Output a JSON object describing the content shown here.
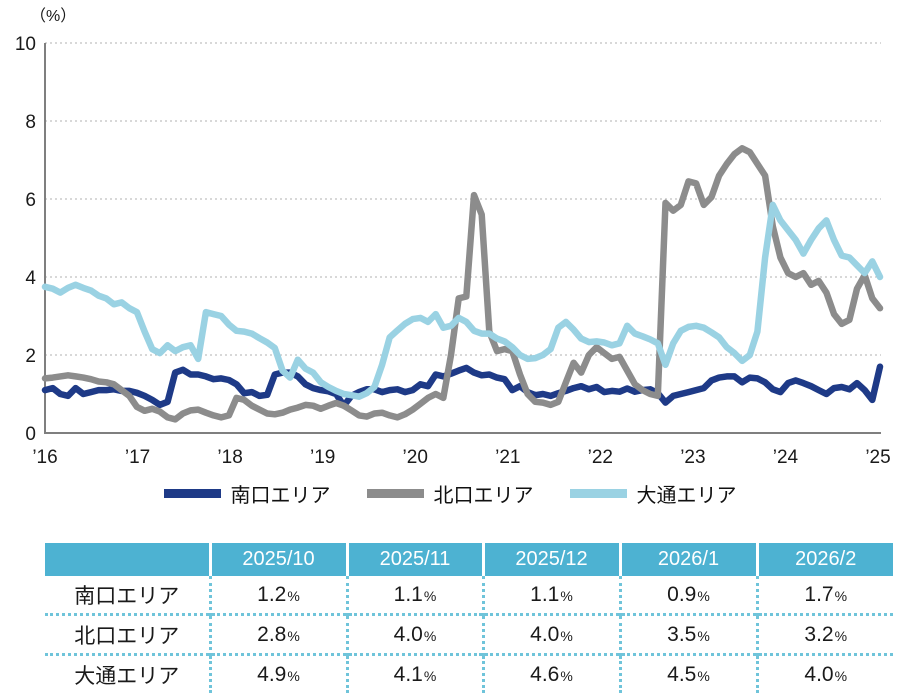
{
  "chart_data": {
    "type": "line",
    "unit_label": "（%）",
    "ylim": [
      0,
      10
    ],
    "yticks": [
      0,
      2,
      4,
      6,
      8,
      10
    ],
    "x_tick_labels": [
      "’16",
      "’17",
      "’18",
      "’19",
      "’20",
      "’21",
      "’22",
      "’23",
      "’24",
      "’25"
    ],
    "grid": "horizontal-dashed",
    "legend_position": "bottom",
    "series": [
      {
        "name": "南口エリア",
        "color": "#1e3a87",
        "values": [
          1.1,
          1.15,
          1.0,
          0.95,
          1.15,
          1.0,
          1.05,
          1.1,
          1.1,
          1.12,
          1.08,
          1.08,
          1.03,
          0.95,
          0.85,
          0.72,
          0.8,
          1.55,
          1.62,
          1.5,
          1.5,
          1.45,
          1.38,
          1.4,
          1.36,
          1.25,
          1.02,
          1.05,
          0.95,
          0.98,
          1.5,
          1.55,
          1.55,
          1.45,
          1.25,
          1.15,
          1.1,
          1.07,
          1.0,
          0.7,
          0.95,
          1.05,
          1.12,
          1.12,
          1.05,
          1.1,
          1.12,
          1.05,
          1.1,
          1.25,
          1.2,
          1.5,
          1.45,
          1.52,
          1.6,
          1.67,
          1.55,
          1.48,
          1.5,
          1.42,
          1.38,
          1.1,
          1.2,
          1.05,
          0.97,
          1.0,
          0.95,
          1.02,
          1.08,
          1.15,
          1.2,
          1.12,
          1.18,
          1.05,
          1.08,
          1.06,
          1.14,
          1.06,
          1.1,
          1.12,
          1.02,
          0.78,
          0.95,
          1.0,
          1.05,
          1.1,
          1.15,
          1.35,
          1.42,
          1.45,
          1.45,
          1.3,
          1.42,
          1.4,
          1.3,
          1.12,
          1.05,
          1.28,
          1.35,
          1.28,
          1.2,
          1.1,
          1.0,
          1.15,
          1.18,
          1.12,
          1.28,
          1.1,
          0.85,
          1.7
        ]
      },
      {
        "name": "北口エリア",
        "color": "#8c8c8c",
        "values": [
          1.4,
          1.42,
          1.45,
          1.48,
          1.45,
          1.42,
          1.38,
          1.32,
          1.3,
          1.25,
          1.1,
          0.95,
          0.67,
          0.57,
          0.62,
          0.55,
          0.4,
          0.35,
          0.5,
          0.58,
          0.6,
          0.52,
          0.45,
          0.4,
          0.45,
          0.9,
          0.85,
          0.7,
          0.6,
          0.5,
          0.48,
          0.52,
          0.6,
          0.65,
          0.72,
          0.7,
          0.62,
          0.7,
          0.77,
          0.7,
          0.58,
          0.45,
          0.42,
          0.5,
          0.52,
          0.45,
          0.4,
          0.48,
          0.6,
          0.75,
          0.9,
          1.0,
          0.9,
          2.0,
          3.45,
          3.5,
          6.1,
          5.6,
          2.6,
          2.1,
          2.15,
          2.1,
          1.5,
          1.0,
          0.8,
          0.78,
          0.72,
          0.8,
          1.3,
          1.8,
          1.55,
          2.0,
          2.2,
          2.05,
          1.9,
          1.95,
          1.6,
          1.25,
          1.1,
          1.0,
          0.95,
          5.9,
          5.7,
          5.85,
          6.45,
          6.4,
          5.85,
          6.05,
          6.6,
          6.9,
          7.15,
          7.3,
          7.2,
          6.9,
          6.6,
          5.3,
          4.5,
          4.1,
          4.0,
          4.1,
          3.8,
          3.9,
          3.6,
          3.05,
          2.8,
          2.9,
          3.7,
          4.05,
          3.45,
          3.2
        ]
      },
      {
        "name": "大通エリア",
        "color": "#9ad2e3",
        "values": [
          3.75,
          3.7,
          3.6,
          3.72,
          3.8,
          3.72,
          3.65,
          3.52,
          3.45,
          3.3,
          3.35,
          3.2,
          3.1,
          2.6,
          2.15,
          2.05,
          2.25,
          2.1,
          2.2,
          2.25,
          1.9,
          3.1,
          3.05,
          3.0,
          2.78,
          2.62,
          2.6,
          2.55,
          2.43,
          2.32,
          2.18,
          1.6,
          1.42,
          1.88,
          1.65,
          1.55,
          1.3,
          1.18,
          1.08,
          1.0,
          0.97,
          0.93,
          1.02,
          1.18,
          1.75,
          2.45,
          2.63,
          2.8,
          2.92,
          2.95,
          2.85,
          3.05,
          2.7,
          2.75,
          2.95,
          2.85,
          2.62,
          2.55,
          2.55,
          2.42,
          2.35,
          2.2,
          2.0,
          1.9,
          1.92,
          2.0,
          2.15,
          2.7,
          2.85,
          2.65,
          2.42,
          2.33,
          2.35,
          2.32,
          2.25,
          2.3,
          2.75,
          2.55,
          2.48,
          2.4,
          2.3,
          1.75,
          2.3,
          2.62,
          2.72,
          2.75,
          2.7,
          2.58,
          2.45,
          2.2,
          2.05,
          1.85,
          2.0,
          2.6,
          4.5,
          5.85,
          5.45,
          5.2,
          4.95,
          4.6,
          4.95,
          5.25,
          5.45,
          4.95,
          4.55,
          4.5,
          4.3,
          4.1,
          4.4,
          4.0
        ]
      }
    ]
  },
  "legend": {
    "items": [
      {
        "label": "南口エリア",
        "color": "#1e3a87"
      },
      {
        "label": "北口エリア",
        "color": "#8c8c8c"
      },
      {
        "label": "大通エリア",
        "color": "#9ad2e3"
      }
    ]
  },
  "table": {
    "header_bg": "#4db2d2",
    "columns": [
      "2025/10",
      "2025/11",
      "2025/12",
      "2026/1",
      "2026/2"
    ],
    "percent_suffix": "%",
    "rows": [
      {
        "label": "南口エリア",
        "values": [
          "1.2",
          "1.1",
          "1.1",
          "0.9",
          "1.7"
        ]
      },
      {
        "label": "北口エリア",
        "values": [
          "2.8",
          "4.0",
          "4.0",
          "3.5",
          "3.2"
        ]
      },
      {
        "label": "大通エリア",
        "values": [
          "4.9",
          "4.1",
          "4.6",
          "4.5",
          "4.0"
        ]
      }
    ]
  }
}
